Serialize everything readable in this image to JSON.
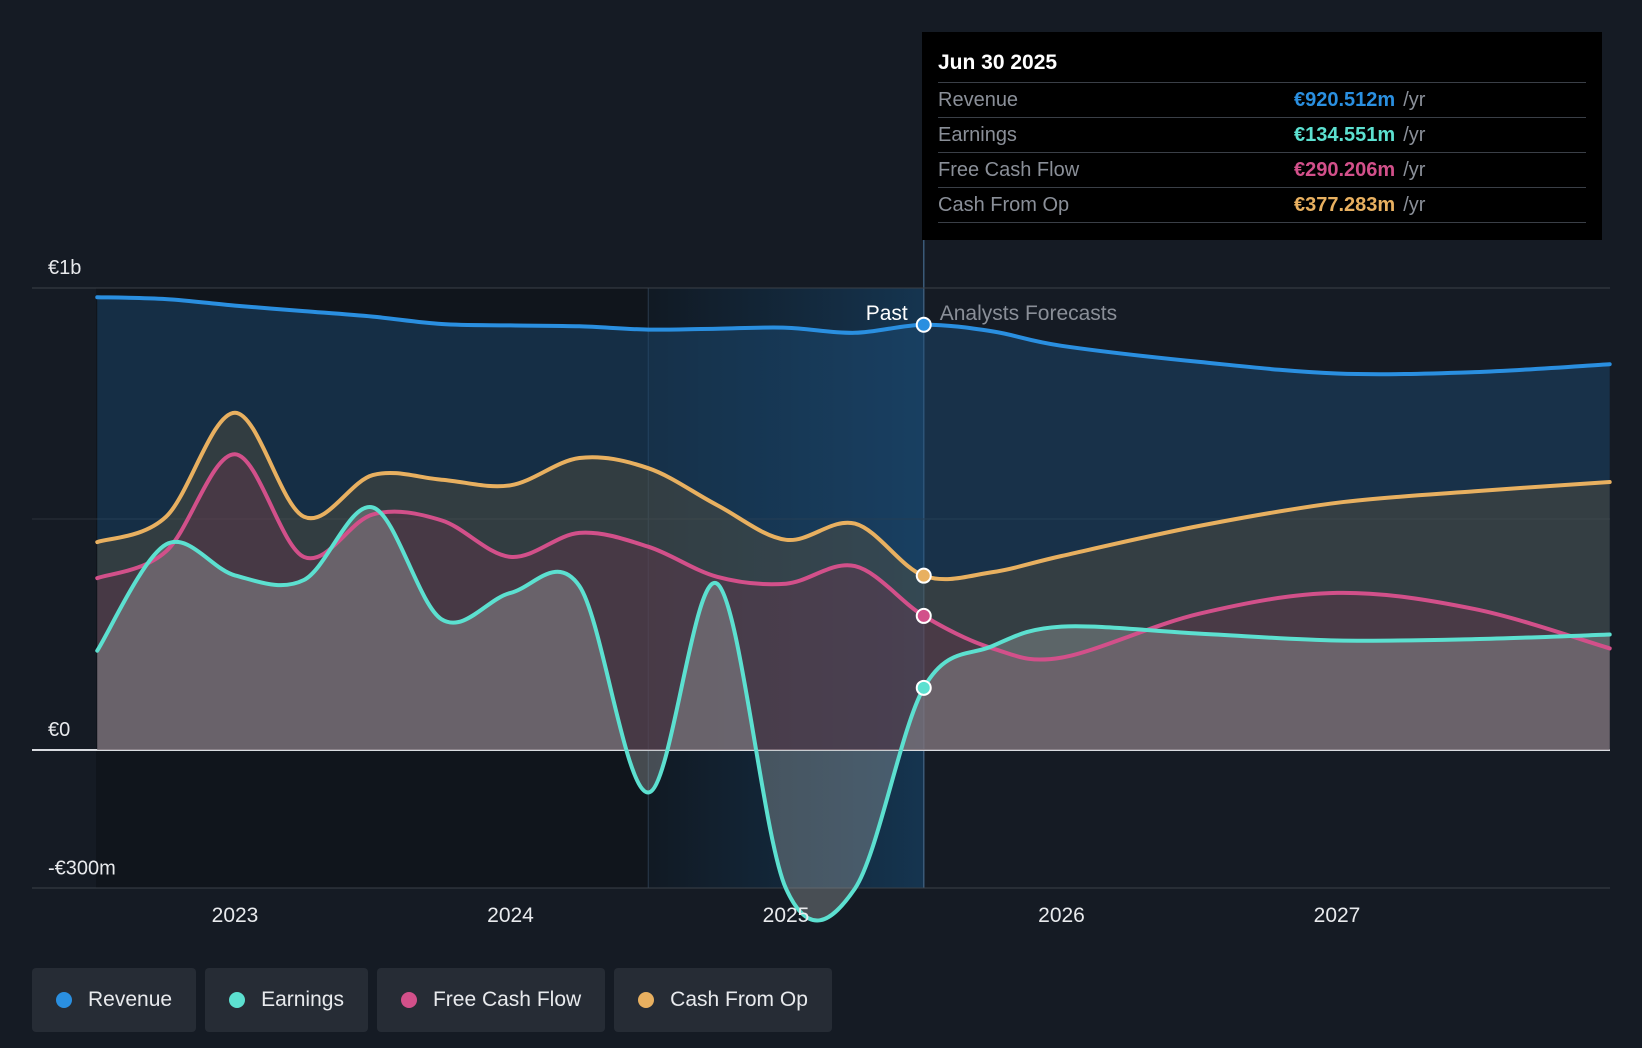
{
  "colors": {
    "revenue": "#2a8fe0",
    "earnings": "#5ce0d0",
    "fcf": "#d2508a",
    "cfo": "#e8b060",
    "background": "#151b24"
  },
  "chart_data": {
    "type": "line",
    "title": "",
    "xlabel": "",
    "ylabel": "",
    "ylim": [
      -300,
      1000
    ],
    "y_unit": "€m",
    "y_tick_labels": [
      {
        "value": 1000,
        "label": "€1b"
      },
      {
        "value": 0,
        "label": "€0"
      },
      {
        "value": -300,
        "label": "-€300m"
      }
    ],
    "x_ticks": [
      {
        "value": 2023.0,
        "label": "2023"
      },
      {
        "value": 2024.0,
        "label": "2024"
      },
      {
        "value": 2025.0,
        "label": "2025"
      },
      {
        "value": 2026.0,
        "label": "2026"
      },
      {
        "value": 2027.0,
        "label": "2027"
      }
    ],
    "xlim": [
      2022.27,
      2027.99
    ],
    "past_label": "Past",
    "forecast_label": "Analysts Forecasts",
    "past_end": 2025.5,
    "highlight_start": 2024.5,
    "series": [
      {
        "name": "Revenue",
        "key": "revenue",
        "x": [
          2022.5,
          2022.75,
          2023.0,
          2023.25,
          2023.5,
          2023.75,
          2024.0,
          2024.25,
          2024.5,
          2024.75,
          2025.0,
          2025.25,
          2025.5,
          2025.75,
          2026.0,
          2026.5,
          2027.0,
          2027.5,
          2027.99
        ],
        "values": [
          980,
          976,
          962,
          950,
          938,
          922,
          919,
          917,
          910,
          912,
          914,
          903,
          920.5,
          906,
          875,
          840,
          815,
          818,
          835
        ]
      },
      {
        "name": "Earnings",
        "key": "earnings",
        "x": [
          2022.5,
          2022.75,
          2023.0,
          2023.25,
          2023.5,
          2023.75,
          2024.0,
          2024.25,
          2024.5,
          2024.75,
          2025.0,
          2025.25,
          2025.5,
          2025.75,
          2026.0,
          2026.5,
          2027.0,
          2027.5,
          2027.99
        ],
        "values": [
          215,
          445,
          378,
          368,
          525,
          283,
          340,
          355,
          -92,
          360,
          -300,
          -300,
          134.6,
          225,
          267,
          252,
          237,
          240,
          250
        ]
      },
      {
        "name": "Free Cash Flow",
        "key": "fcf",
        "x": [
          2022.5,
          2022.75,
          2023.0,
          2023.25,
          2023.5,
          2023.75,
          2024.0,
          2024.25,
          2024.5,
          2024.75,
          2025.0,
          2025.25,
          2025.5,
          2025.75,
          2026.0,
          2026.5,
          2027.0,
          2027.5,
          2027.99
        ],
        "values": [
          372,
          430,
          640,
          418,
          510,
          497,
          418,
          470,
          440,
          375,
          360,
          398,
          290.2,
          220,
          200,
          295,
          340,
          305,
          220
        ]
      },
      {
        "name": "Cash From Op",
        "key": "cfo",
        "x": [
          2022.5,
          2022.75,
          2023.0,
          2023.25,
          2023.5,
          2023.75,
          2024.0,
          2024.25,
          2024.5,
          2024.75,
          2025.0,
          2025.25,
          2025.5,
          2025.75,
          2026.0,
          2026.5,
          2027.0,
          2027.5,
          2027.99
        ],
        "values": [
          450,
          505,
          730,
          505,
          595,
          585,
          573,
          632,
          610,
          530,
          455,
          490,
          377.3,
          385,
          420,
          485,
          535,
          560,
          580
        ]
      }
    ]
  },
  "tooltip": {
    "date": "Jun 30 2025",
    "rows": [
      {
        "label": "Revenue",
        "value": "€920.512m",
        "unit": "/yr"
      },
      {
        "label": "Earnings",
        "value": "€134.551m",
        "unit": "/yr"
      },
      {
        "label": "Free Cash Flow",
        "value": "€290.206m",
        "unit": "/yr"
      },
      {
        "label": "Cash From Op",
        "value": "€377.283m",
        "unit": "/yr"
      }
    ]
  },
  "legend": [
    {
      "label": "Revenue",
      "key": "revenue"
    },
    {
      "label": "Earnings",
      "key": "earnings"
    },
    {
      "label": "Free Cash Flow",
      "key": "fcf"
    },
    {
      "label": "Cash From Op",
      "key": "cfo"
    }
  ]
}
